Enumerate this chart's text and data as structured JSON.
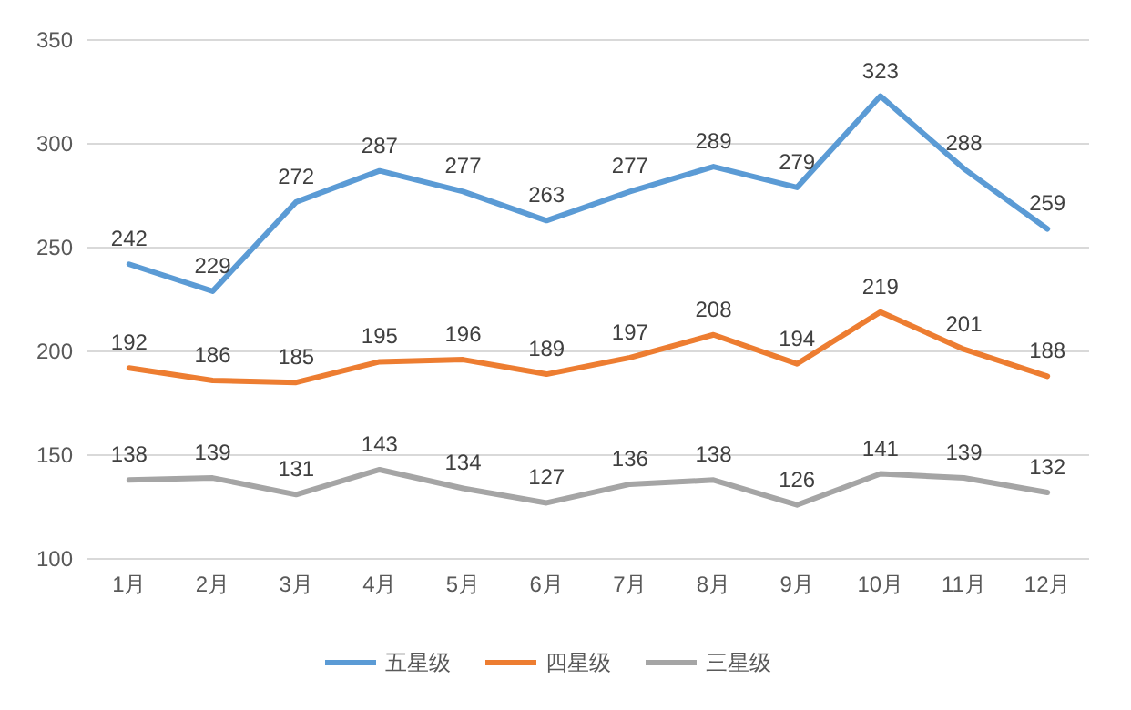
{
  "chart_data": {
    "type": "line",
    "categories": [
      "1月",
      "2月",
      "3月",
      "4月",
      "5月",
      "6月",
      "7月",
      "8月",
      "9月",
      "10月",
      "11月",
      "12月"
    ],
    "series": [
      {
        "name": "五星级",
        "color": "#5b9bd5",
        "values": [
          242,
          229,
          272,
          287,
          277,
          263,
          277,
          289,
          279,
          323,
          288,
          259
        ]
      },
      {
        "name": "四星级",
        "color": "#ed7d31",
        "values": [
          192,
          186,
          185,
          195,
          196,
          189,
          197,
          208,
          194,
          219,
          201,
          188
        ]
      },
      {
        "name": "三星级",
        "color": "#a5a5a5",
        "values": [
          138,
          139,
          131,
          143,
          134,
          127,
          136,
          138,
          126,
          141,
          139,
          132
        ]
      }
    ],
    "ylim": [
      100,
      350
    ],
    "yticks": [
      100,
      150,
      200,
      250,
      300,
      350
    ],
    "grid": "y",
    "legend": "bottom",
    "data_labels": true
  }
}
